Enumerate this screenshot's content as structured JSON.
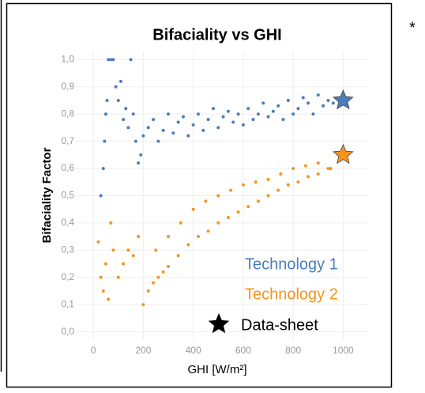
{
  "chart_data": {
    "type": "scatter",
    "title": "Bifaciality vs GHI",
    "xlabel": "GHI [W/m²]",
    "ylabel": "Bifaciality Factor",
    "xlim": [
      -70,
      1100
    ],
    "xticks": [
      0,
      200,
      400,
      600,
      800,
      1000
    ],
    "ylim": [
      -0.03,
      1.03
    ],
    "yticks": [
      {
        "value": 0,
        "label": "0,0"
      },
      {
        "value": 0.1,
        "label": "0,1"
      },
      {
        "value": 0.2,
        "label": "0,2"
      },
      {
        "value": 0.3,
        "label": "0,3"
      },
      {
        "value": 0.4,
        "label": "0,4"
      },
      {
        "value": 0.5,
        "label": "0,5"
      },
      {
        "value": 0.6,
        "label": "0,6"
      },
      {
        "value": 0.7,
        "label": "0,7"
      },
      {
        "value": 0.8,
        "label": "0,8"
      },
      {
        "value": 0.9,
        "label": "0,9"
      },
      {
        "value": 1,
        "label": "1,0"
      }
    ],
    "grid": true,
    "series": [
      {
        "name": "Technology 1",
        "color": "#4a7ebb",
        "x": [
          30,
          40,
          45,
          50,
          55,
          60,
          70,
          80,
          90,
          100,
          110,
          120,
          130,
          140,
          150,
          160,
          170,
          180,
          190,
          200,
          220,
          240,
          260,
          280,
          300,
          320,
          340,
          360,
          380,
          400,
          420,
          440,
          460,
          480,
          500,
          520,
          540,
          560,
          580,
          600,
          620,
          640,
          660,
          680,
          700,
          720,
          740,
          760,
          780,
          800,
          820,
          840,
          860,
          880,
          900,
          920,
          940,
          960
        ],
        "values": [
          0.5,
          0.6,
          0.7,
          0.8,
          0.85,
          1.0,
          1.0,
          1.0,
          0.9,
          0.85,
          0.92,
          0.78,
          0.82,
          0.75,
          1.0,
          0.8,
          0.7,
          0.62,
          0.65,
          0.72,
          0.75,
          0.78,
          0.7,
          0.74,
          0.8,
          0.73,
          0.77,
          0.79,
          0.72,
          0.76,
          0.8,
          0.74,
          0.78,
          0.82,
          0.75,
          0.79,
          0.81,
          0.77,
          0.8,
          0.76,
          0.82,
          0.78,
          0.8,
          0.84,
          0.79,
          0.81,
          0.83,
          0.78,
          0.85,
          0.8,
          0.82,
          0.86,
          0.84,
          0.8,
          0.87,
          0.83,
          0.85,
          0.84
        ]
      },
      {
        "name": "Technology 2",
        "color": "#f7941d",
        "x": [
          20,
          30,
          40,
          50,
          60,
          70,
          80,
          100,
          120,
          140,
          160,
          180,
          200,
          220,
          240,
          260,
          280,
          300,
          340,
          380,
          420,
          460,
          500,
          540,
          580,
          620,
          660,
          700,
          740,
          780,
          820,
          860,
          900,
          940,
          250,
          300,
          350,
          400,
          450,
          500,
          550,
          600,
          650,
          700,
          750,
          800,
          850,
          900,
          950
        ],
        "values": [
          0.33,
          0.2,
          0.15,
          0.25,
          0.12,
          0.4,
          0.3,
          0.2,
          0.25,
          0.3,
          0.28,
          0.35,
          0.1,
          0.15,
          0.18,
          0.2,
          0.22,
          0.24,
          0.28,
          0.32,
          0.35,
          0.37,
          0.4,
          0.42,
          0.44,
          0.46,
          0.48,
          0.5,
          0.52,
          0.54,
          0.55,
          0.57,
          0.58,
          0.6,
          0.3,
          0.35,
          0.4,
          0.45,
          0.48,
          0.5,
          0.52,
          0.54,
          0.55,
          0.56,
          0.58,
          0.6,
          0.61,
          0.62,
          0.6
        ]
      }
    ],
    "datasheet": {
      "name": "Data-sheet",
      "color": "#000000",
      "x": [
        1000,
        1000
      ],
      "values": [
        0.85,
        0.65
      ],
      "colors": [
        "#4a7ebb",
        "#f7941d"
      ]
    },
    "note": "*"
  }
}
